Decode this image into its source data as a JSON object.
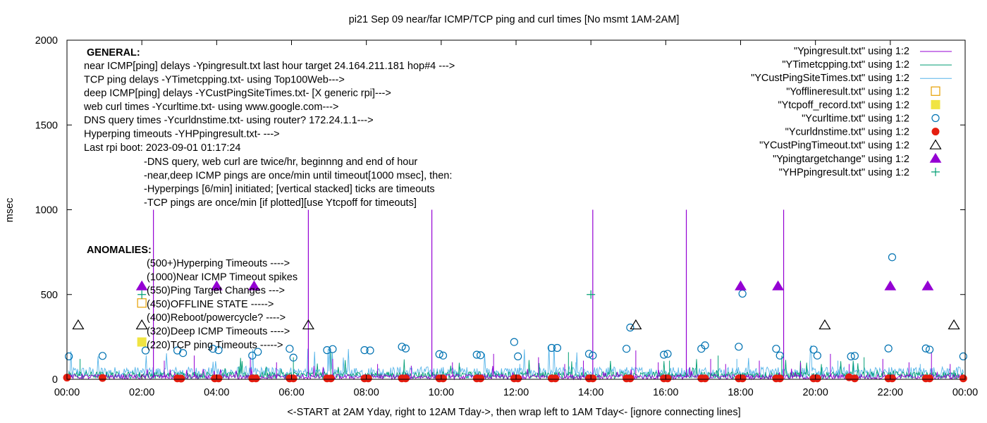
{
  "colors": {
    "ping": "#9400d3",
    "tcp": "#009e73",
    "custping": "#56b4e9",
    "offline": "#e69f00",
    "tcpoff": "#f0e442",
    "curl": "#0072b2",
    "dns": "#e51e10",
    "custtimeout": "#000000",
    "target": "#9400d3",
    "hp": "#009e73"
  },
  "chart_data": {
    "type": "scatter",
    "title": "pi21 Sep 09  near/far ICMP/TCP ping and curl times [No msmt 1AM-2AM]",
    "xlabel": "<-START at 2AM Yday, right to 12AM Tday->, then wrap left to 1AM Tday<- [ignore connecting lines]",
    "ylabel": "msec",
    "xlim": [
      0,
      24
    ],
    "ylim": [
      0,
      2000
    ],
    "x_ticks": [
      "00:00",
      "02:00",
      "04:00",
      "06:00",
      "08:00",
      "10:00",
      "12:00",
      "14:00",
      "16:00",
      "18:00",
      "20:00",
      "22:00",
      "00:00"
    ],
    "y_ticks": [
      "0",
      "500",
      "1000",
      "1500",
      "2000"
    ],
    "y_tick_values": [
      0,
      500,
      1000,
      1500,
      2000
    ],
    "legend_position": "top-right",
    "legend": [
      {
        "label": "\"Ypingresult.txt\" using 1:2",
        "style": "line",
        "key": "ping"
      },
      {
        "label": "\"YTimetcpping.txt\" using 1:2",
        "style": "line",
        "key": "tcp"
      },
      {
        "label": "\"YCustPingSiteTimes.txt\" using 1:2",
        "style": "line",
        "key": "custping"
      },
      {
        "label": "\"Yofflineresult.txt\" using 1:2",
        "style": "open-square",
        "key": "offline"
      },
      {
        "label": "\"Ytcpoff_record.txt\" using 1:2",
        "style": "filled-square",
        "key": "tcpoff"
      },
      {
        "label": "\"Ycurltime.txt\" using 1:2",
        "style": "open-circle",
        "key": "curl"
      },
      {
        "label": "\"Ycurldnstime.txt\" using 1:2",
        "style": "filled-circle",
        "key": "dns"
      },
      {
        "label": "\"YCustPingTimeout.txt\" using 1:2",
        "style": "open-triangle",
        "key": "custtimeout"
      },
      {
        "label": "\"Ypingtargetchange\" using 1:2",
        "style": "filled-triangle",
        "key": "target"
      },
      {
        "label": "\"YHPpingresult.txt\" using 1:2",
        "style": "plus",
        "key": "hp"
      }
    ],
    "annotations": {
      "general_title": "GENERAL:",
      "general_lines": [
        "near ICMP[ping] delays -Ypingresult.txt last hour target 24.164.211.181 hop#4 --->",
        "TCP ping delays -YTimetcpping.txt- using Top100Web--->",
        "deep ICMP[ping] delays -YCustPingSiteTimes.txt- [X generic rpi]--->",
        "web curl times -Ycurltime.txt- using www.google.com--->",
        "DNS query times -Ycurldnstime.txt- using router? 172.24.1.1--->",
        "Hyperping timeouts -YHPpingresult.txt- --->",
        "Last rpi boot: 2023-09-01 01:17:24"
      ],
      "notes": [
        "-DNS query, web curl are twice/hr, beginnng and end of hour",
        "-near,deep ICMP pings are once/min until timeout[1000 msec], then:",
        "  -Hyperpings [6/min] initiated; [vertical stacked] ticks are timeouts",
        "-TCP pings are once/min [if plotted][use Ytcpoff for timeouts]"
      ],
      "anomalies_title": "ANOMALIES:",
      "anomalies": [
        "(500+)Hyperping Timeouts ---->",
        "(1000)Near ICMP Timeout spikes",
        "(550)Ping Target Changes --->",
        "(450)OFFLINE STATE ----->",
        "(400)Reboot/powercycle? ---->",
        "(320)Deep ICMP Timeouts ---->",
        "(220)TCP ping Timeouts ----->"
      ]
    },
    "series": {
      "ping_spikes": [
        {
          "x": 2.31,
          "y": 1000
        },
        {
          "x": 6.45,
          "y": 1000
        },
        {
          "x": 9.75,
          "y": 1000
        },
        {
          "x": 14.05,
          "y": 1000
        },
        {
          "x": 16.55,
          "y": 1000
        },
        {
          "x": 19.15,
          "y": 1000
        }
      ],
      "ping_small_spikes": [
        {
          "x": 2.6,
          "y": 110
        },
        {
          "x": 3.4,
          "y": 140
        },
        {
          "x": 4.9,
          "y": 130
        },
        {
          "x": 5.6,
          "y": 100
        },
        {
          "x": 7.1,
          "y": 120
        },
        {
          "x": 8.3,
          "y": 90
        },
        {
          "x": 9.2,
          "y": 80
        },
        {
          "x": 10.3,
          "y": 100
        },
        {
          "x": 11.4,
          "y": 150
        },
        {
          "x": 12.6,
          "y": 130
        },
        {
          "x": 13.3,
          "y": 90
        },
        {
          "x": 13.8,
          "y": 110
        },
        {
          "x": 15.2,
          "y": 170
        },
        {
          "x": 15.8,
          "y": 100
        },
        {
          "x": 17.2,
          "y": 120
        },
        {
          "x": 17.6,
          "y": 90
        },
        {
          "x": 18.5,
          "y": 110
        },
        {
          "x": 19.6,
          "y": 100
        },
        {
          "x": 20.4,
          "y": 150
        },
        {
          "x": 20.9,
          "y": 90
        },
        {
          "x": 21.8,
          "y": 120
        },
        {
          "x": 22.5,
          "y": 100
        },
        {
          "x": 23.1,
          "y": 160
        },
        {
          "x": 23.6,
          "y": 90
        }
      ],
      "tcp_spikes": [
        {
          "x": 0.35,
          "y": 120
        },
        {
          "x": 6.05,
          "y": 130
        },
        {
          "x": 7.05,
          "y": 160
        },
        {
          "x": 13.4,
          "y": 160
        },
        {
          "x": 16.1,
          "y": 110
        },
        {
          "x": 17.4,
          "y": 140
        },
        {
          "x": 19.1,
          "y": 140
        },
        {
          "x": 21.3,
          "y": 130
        }
      ],
      "custping_spikes": [
        {
          "x": 6.45,
          "y": 110
        },
        {
          "x": 12.1,
          "y": 90
        },
        {
          "x": 13.6,
          "y": 100
        },
        {
          "x": 17.9,
          "y": 120
        },
        {
          "x": 20.6,
          "y": 110
        },
        {
          "x": 22.8,
          "y": 90
        }
      ],
      "offline": [
        {
          "x": 2.0,
          "y": 450
        }
      ],
      "tcpoff": [
        {
          "x": 2.0,
          "y": 220
        }
      ],
      "curl": [
        {
          "x": 0.05,
          "y": 135
        },
        {
          "x": 0.95,
          "y": 138
        },
        {
          "x": 2.1,
          "y": 170
        },
        {
          "x": 2.95,
          "y": 170
        },
        {
          "x": 3.1,
          "y": 155
        },
        {
          "x": 3.9,
          "y": 180
        },
        {
          "x": 4.05,
          "y": 172
        },
        {
          "x": 4.95,
          "y": 140
        },
        {
          "x": 5.1,
          "y": 162
        },
        {
          "x": 5.95,
          "y": 180
        },
        {
          "x": 6.05,
          "y": 128
        },
        {
          "x": 6.95,
          "y": 172
        },
        {
          "x": 7.1,
          "y": 178
        },
        {
          "x": 7.95,
          "y": 172
        },
        {
          "x": 8.1,
          "y": 170
        },
        {
          "x": 8.95,
          "y": 192
        },
        {
          "x": 9.05,
          "y": 182
        },
        {
          "x": 9.95,
          "y": 148
        },
        {
          "x": 10.05,
          "y": 140
        },
        {
          "x": 10.95,
          "y": 145
        },
        {
          "x": 11.05,
          "y": 142
        },
        {
          "x": 11.95,
          "y": 220
        },
        {
          "x": 12.05,
          "y": 135
        },
        {
          "x": 12.95,
          "y": 185
        },
        {
          "x": 13.1,
          "y": 185
        },
        {
          "x": 13.95,
          "y": 150
        },
        {
          "x": 14.05,
          "y": 140
        },
        {
          "x": 14.95,
          "y": 180
        },
        {
          "x": 15.05,
          "y": 305
        },
        {
          "x": 15.95,
          "y": 145
        },
        {
          "x": 16.05,
          "y": 150
        },
        {
          "x": 16.95,
          "y": 180
        },
        {
          "x": 17.05,
          "y": 200
        },
        {
          "x": 17.95,
          "y": 192
        },
        {
          "x": 18.05,
          "y": 505
        },
        {
          "x": 18.95,
          "y": 180
        },
        {
          "x": 19.05,
          "y": 140
        },
        {
          "x": 19.95,
          "y": 175
        },
        {
          "x": 20.05,
          "y": 140
        },
        {
          "x": 20.95,
          "y": 135
        },
        {
          "x": 21.05,
          "y": 138
        },
        {
          "x": 21.95,
          "y": 182
        },
        {
          "x": 22.05,
          "y": 720
        },
        {
          "x": 22.95,
          "y": 182
        },
        {
          "x": 23.05,
          "y": 175
        },
        {
          "x": 23.95,
          "y": 135
        }
      ],
      "dns": [
        {
          "x": 0.0,
          "y": 10
        },
        {
          "x": 0.95,
          "y": 8
        },
        {
          "x": 2.95,
          "y": 5
        },
        {
          "x": 3.05,
          "y": 4
        },
        {
          "x": 3.95,
          "y": 5
        },
        {
          "x": 4.05,
          "y": 5
        },
        {
          "x": 4.95,
          "y": 5
        },
        {
          "x": 5.05,
          "y": 5
        },
        {
          "x": 5.95,
          "y": 5
        },
        {
          "x": 6.05,
          "y": 5
        },
        {
          "x": 6.95,
          "y": 5
        },
        {
          "x": 7.05,
          "y": 5
        },
        {
          "x": 7.95,
          "y": 5
        },
        {
          "x": 8.05,
          "y": 5
        },
        {
          "x": 8.95,
          "y": 5
        },
        {
          "x": 9.05,
          "y": 5
        },
        {
          "x": 9.95,
          "y": 5
        },
        {
          "x": 10.05,
          "y": 5
        },
        {
          "x": 10.95,
          "y": 5
        },
        {
          "x": 11.05,
          "y": 5
        },
        {
          "x": 11.95,
          "y": 5
        },
        {
          "x": 12.05,
          "y": 5
        },
        {
          "x": 12.95,
          "y": 5
        },
        {
          "x": 13.05,
          "y": 5
        },
        {
          "x": 13.95,
          "y": 5
        },
        {
          "x": 14.05,
          "y": 5
        },
        {
          "x": 14.95,
          "y": 5
        },
        {
          "x": 15.05,
          "y": 5
        },
        {
          "x": 15.95,
          "y": 5
        },
        {
          "x": 16.05,
          "y": 5
        },
        {
          "x": 16.95,
          "y": 5
        },
        {
          "x": 17.05,
          "y": 5
        },
        {
          "x": 17.95,
          "y": 5
        },
        {
          "x": 18.05,
          "y": 5
        },
        {
          "x": 18.95,
          "y": 5
        },
        {
          "x": 19.05,
          "y": 5
        },
        {
          "x": 19.95,
          "y": 5
        },
        {
          "x": 20.05,
          "y": 5
        },
        {
          "x": 20.9,
          "y": 12
        },
        {
          "x": 21.05,
          "y": 5
        },
        {
          "x": 21.95,
          "y": 5
        },
        {
          "x": 22.05,
          "y": 5
        },
        {
          "x": 22.95,
          "y": 5
        },
        {
          "x": 23.05,
          "y": 5
        },
        {
          "x": 23.95,
          "y": 5
        }
      ],
      "custtimeout": [
        {
          "x": 0.3,
          "y": 320
        },
        {
          "x": 2.0,
          "y": 320
        },
        {
          "x": 6.45,
          "y": 320
        },
        {
          "x": 15.2,
          "y": 320
        },
        {
          "x": 20.25,
          "y": 320
        },
        {
          "x": 23.7,
          "y": 320
        }
      ],
      "target": [
        {
          "x": 2.0,
          "y": 550
        },
        {
          "x": 4.0,
          "y": 550
        },
        {
          "x": 5.0,
          "y": 550
        },
        {
          "x": 18.0,
          "y": 550
        },
        {
          "x": 19.0,
          "y": 550
        },
        {
          "x": 22.0,
          "y": 550
        },
        {
          "x": 23.0,
          "y": 550
        }
      ],
      "hp": [
        {
          "x": 2.0,
          "y": 500
        },
        {
          "x": 14.0,
          "y": 500
        }
      ]
    }
  }
}
